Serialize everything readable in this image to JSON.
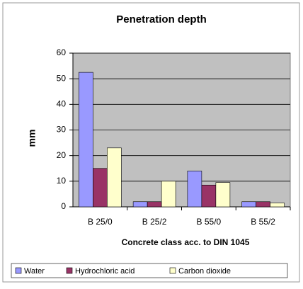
{
  "chart_data": {
    "type": "bar",
    "title": "Penetration depth",
    "x_label": "Concrete class acc. to DIN 1045",
    "y_label": "mm",
    "categories": [
      "B 25/0",
      "B 25/2",
      "B 55/0",
      "B 55/2"
    ],
    "series": [
      {
        "name": "Water",
        "color": "#9999ff",
        "values": [
          52.5,
          2,
          14,
          2
        ]
      },
      {
        "name": "Hydrochloric acid",
        "color": "#993366",
        "values": [
          15,
          2,
          8.5,
          2
        ]
      },
      {
        "name": "Carbon dioxide",
        "color": "#ffffcc",
        "values": [
          23,
          10,
          9.5,
          1.5
        ]
      }
    ],
    "ylim": [
      0,
      60
    ],
    "yticks": [
      0,
      10,
      20,
      30,
      40,
      50,
      60
    ],
    "grid": true,
    "legend": "bottom"
  }
}
